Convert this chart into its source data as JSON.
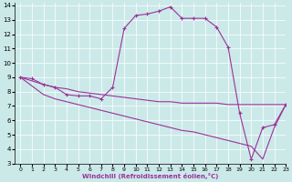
{
  "xlabel": "Windchill (Refroidissement éolien,°C)",
  "background_color": "#cce9e9",
  "line_color": "#993399",
  "xlim": [
    -0.5,
    23
  ],
  "ylim": [
    3,
    14.2
  ],
  "xticks": [
    0,
    1,
    2,
    3,
    4,
    5,
    6,
    7,
    8,
    9,
    10,
    11,
    12,
    13,
    14,
    15,
    16,
    17,
    18,
    19,
    20,
    21,
    22,
    23
  ],
  "yticks": [
    3,
    4,
    5,
    6,
    7,
    8,
    9,
    10,
    11,
    12,
    13,
    14
  ],
  "series": [
    {
      "x": [
        0,
        1,
        2,
        3,
        4,
        5,
        6,
        7,
        8,
        9,
        10,
        11,
        12,
        13,
        14,
        15,
        16,
        17,
        18,
        19,
        20,
        21,
        22,
        23
      ],
      "y": [
        9.0,
        8.9,
        8.5,
        8.3,
        7.8,
        7.7,
        7.7,
        7.5,
        8.3,
        12.4,
        13.3,
        13.4,
        13.6,
        13.9,
        13.1,
        13.1,
        13.1,
        12.5,
        11.1,
        6.5,
        3.3,
        5.5,
        5.7,
        7.1
      ],
      "markers": [
        0,
        1,
        2,
        3,
        4,
        5,
        6,
        7,
        8,
        9,
        10,
        11,
        12,
        13,
        14,
        15,
        16,
        17,
        18,
        19,
        20,
        21,
        22,
        23
      ]
    },
    {
      "x": [
        0,
        2,
        3,
        4,
        5,
        6,
        7,
        8,
        9,
        10,
        11,
        12,
        13,
        14,
        15,
        16,
        17,
        18,
        19,
        20,
        21,
        22,
        23
      ],
      "y": [
        9.0,
        8.5,
        8.3,
        8.2,
        8.0,
        7.9,
        7.8,
        7.7,
        7.6,
        7.5,
        7.4,
        7.3,
        7.3,
        7.2,
        7.2,
        7.2,
        7.2,
        7.1,
        7.1,
        7.1,
        7.1,
        7.1,
        7.1
      ],
      "markers": []
    },
    {
      "x": [
        0,
        2,
        3,
        4,
        5,
        6,
        7,
        8,
        9,
        10,
        11,
        12,
        13,
        14,
        15,
        16,
        17,
        18,
        19,
        20,
        21,
        22,
        23
      ],
      "y": [
        9.0,
        7.8,
        7.5,
        7.3,
        7.1,
        6.9,
        6.7,
        6.5,
        6.3,
        6.1,
        5.9,
        5.7,
        5.5,
        5.3,
        5.2,
        5.0,
        4.8,
        4.6,
        4.4,
        4.2,
        3.3,
        5.5,
        7.1
      ],
      "markers": []
    }
  ]
}
